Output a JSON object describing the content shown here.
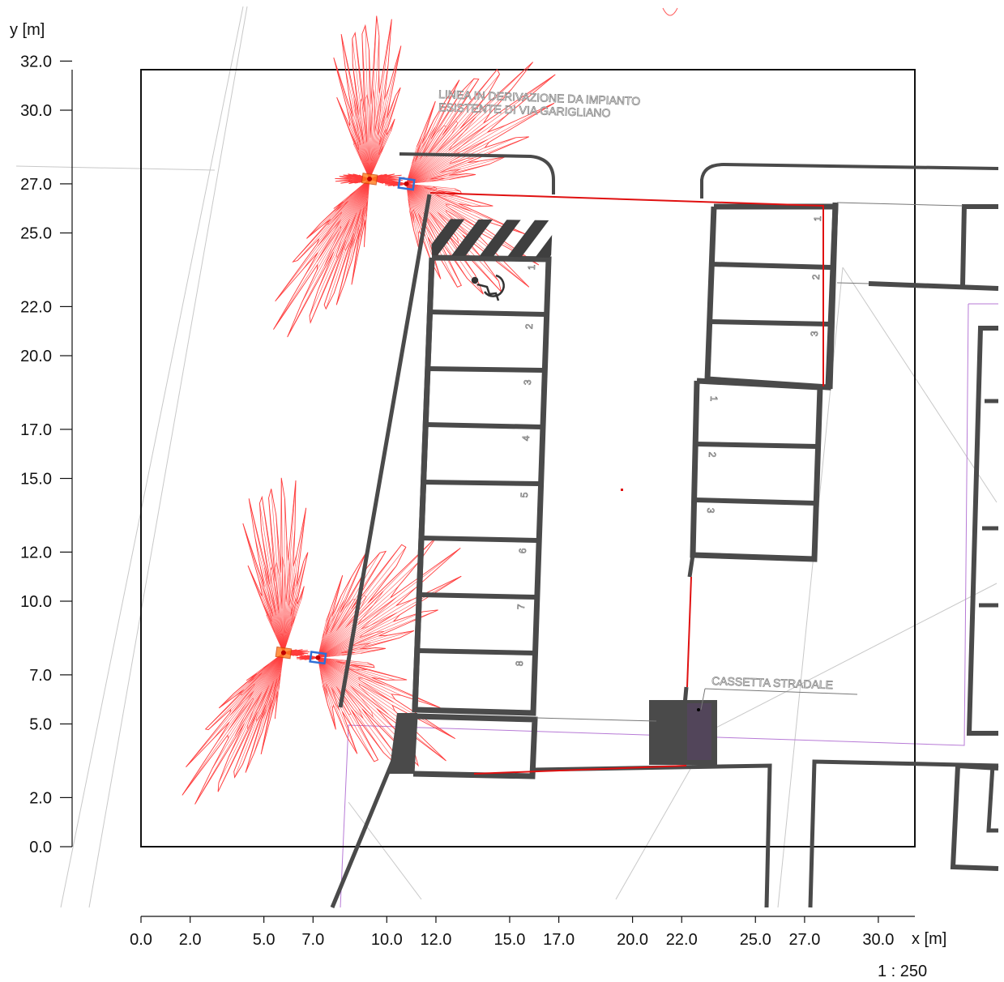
{
  "x_axis": {
    "unit_label": "x [m]",
    "ticks": [
      "0.0",
      "2.0",
      "5.0",
      "7.0",
      "10.0",
      "12.0",
      "15.0",
      "17.0",
      "20.0",
      "22.0",
      "25.0",
      "27.0",
      "30.0"
    ],
    "tick_values": [
      0,
      2,
      5,
      7,
      10,
      12,
      15,
      17,
      20,
      22,
      25,
      27,
      30
    ]
  },
  "y_axis": {
    "unit_label": "y [m]",
    "ticks": [
      "0.0",
      "2.0",
      "5.0",
      "7.0",
      "10.0",
      "12.0",
      "15.0",
      "17.0",
      "20.0",
      "22.0",
      "25.0",
      "27.0",
      "30.0",
      "32.0"
    ],
    "tick_values": [
      0,
      2,
      5,
      7,
      10,
      12,
      15,
      17,
      20,
      22,
      25,
      27,
      30,
      32
    ]
  },
  "scale": "1 : 250",
  "annotations": {
    "line_label_1": "LINEA IN DERIVAZIONE DA IMPIANTO",
    "line_label_2": "ESISTENTE DI VIA GARIGLIANO",
    "box_label": "CASSETTA STRADALE"
  },
  "parking_left": [
    "1",
    "2",
    "3",
    "4",
    "5",
    "6",
    "7",
    "8"
  ],
  "parking_right_top": [
    "1",
    "2",
    "3"
  ],
  "parking_right_mid": [
    "1",
    "2",
    "3"
  ],
  "luminaires": [
    {
      "x": 9.3,
      "y": 27.2
    },
    {
      "x": 10.8,
      "y": 27.0
    },
    {
      "x": 5.8,
      "y": 7.9
    },
    {
      "x": 7.2,
      "y": 7.7
    }
  ],
  "colors": {
    "wall": "#4a4a4a",
    "light_pattern": "#ff3b3b",
    "cable": "#e01010",
    "frame": "#111111",
    "fixture_blue": "#2f6fd6",
    "fixture_orange": "#ff7a1a"
  }
}
